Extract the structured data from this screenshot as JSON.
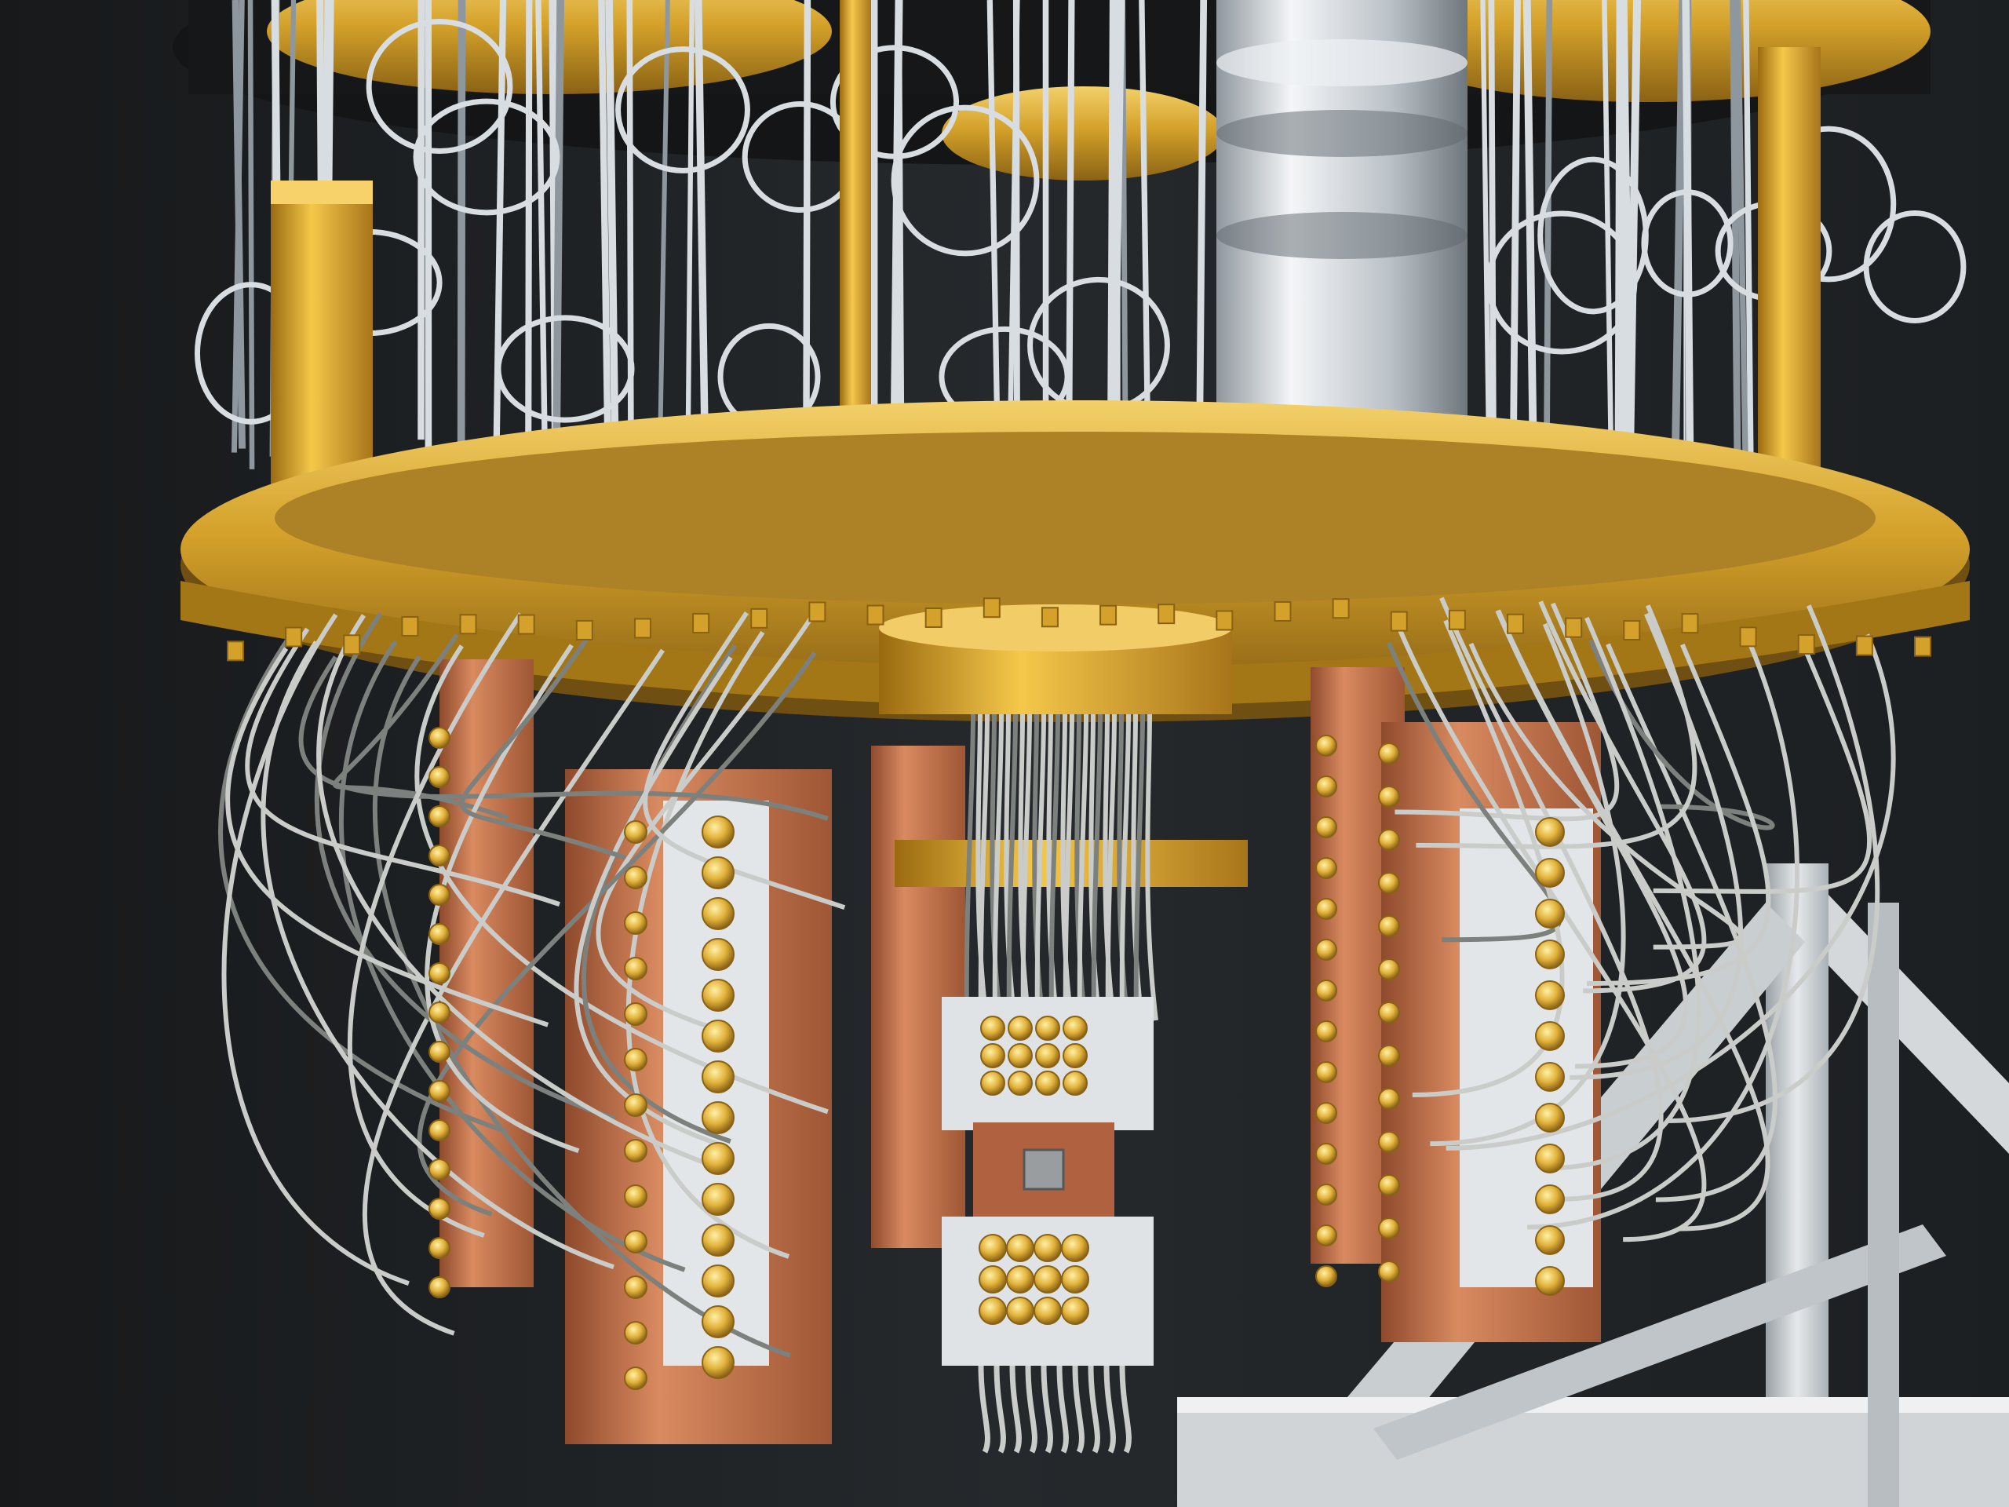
{
  "scene": {
    "subject": "dilution-refrigerator-chandelier",
    "colors": {
      "background": "#1e2124",
      "background_light": "#2a2e31",
      "gold": "#d4a12a",
      "gold_light": "#f0c85a",
      "gold_dark": "#8a6214",
      "brass": "#b58a3a",
      "copper": "#c8724a",
      "copper_dark": "#8e4a2c",
      "silver": "#d8dde2",
      "silver_dark": "#8f979e",
      "cable": "#c9ccc8",
      "cable_dark": "#7d817d",
      "connector_bracket": "#dfe2e4",
      "aluminum_frame": "#d6dadd",
      "aluminum_shadow": "#9aa1a6",
      "chip": "#9a9da0"
    }
  }
}
